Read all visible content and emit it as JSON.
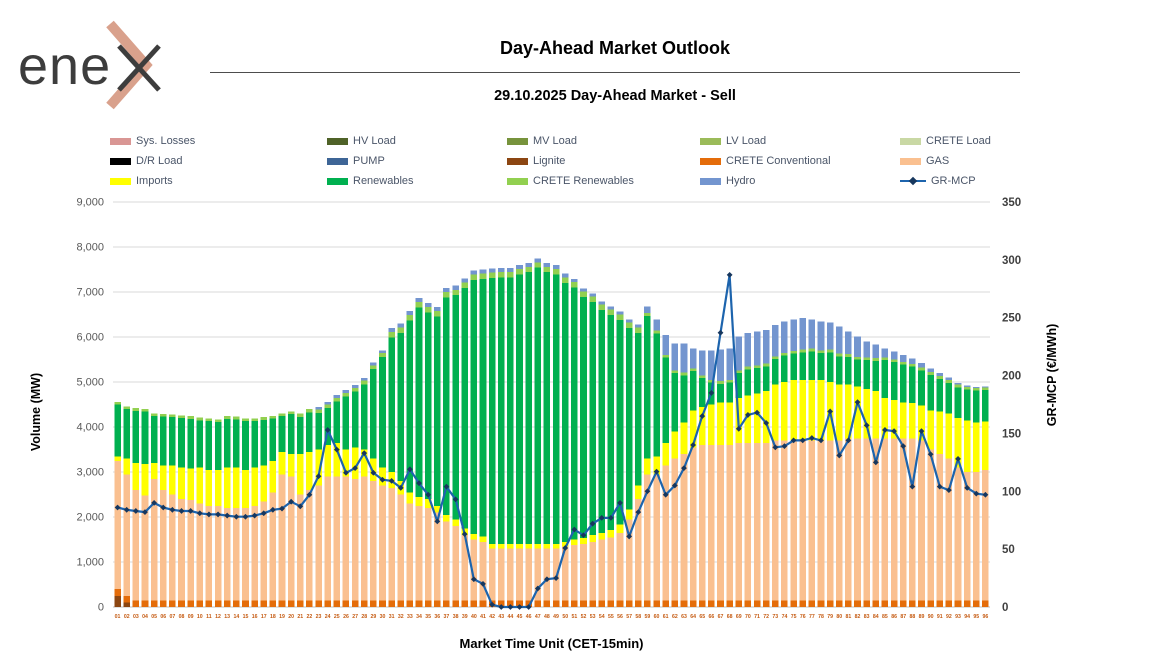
{
  "header": {
    "logo_text": "ene",
    "title": "Day-Ahead Market Outlook",
    "subtitle": "29.10.2025  Day-Ahead Market - Sell"
  },
  "chart_data": {
    "type": "bar",
    "subtype": "stacked-bars-with-line",
    "stack_order": "bottom-to-top",
    "x_label": "Market Time Unit (CET-15min)",
    "y_left_label": "Volume (MW)",
    "y_right_label": "GR-MCP (€/MWh)",
    "y_left_range": [
      0,
      9000
    ],
    "y_left_tick_step": 1000,
    "y_left_ticks": [
      "0",
      "1,000",
      "2,000",
      "3,000",
      "4,000",
      "5,000",
      "6,000",
      "7,000",
      "8,000",
      "9,000"
    ],
    "y_right_range": [
      0,
      350
    ],
    "y_right_tick_step": 50,
    "y_right_ticks": [
      "0",
      "50",
      "100",
      "150",
      "200",
      "250",
      "300",
      "350"
    ],
    "grid": "horizontal",
    "legend_position": "top",
    "colors": {
      "grid": "#d9d9d9",
      "x_tick_labels": "#c55a11",
      "y_left_tick_labels": "#595959",
      "y_right_tick_labels": "#3f3f3f",
      "legend_text": "#4a5568",
      "logo_accent": "#d9a18c",
      "logo_dark": "#3d3d3d"
    },
    "legend": [
      {
        "label": "Sys. Losses",
        "color": "#d99694",
        "type": "box"
      },
      {
        "label": "HV Load",
        "color": "#4f6228",
        "type": "box"
      },
      {
        "label": "MV Load",
        "color": "#77933c",
        "type": "box"
      },
      {
        "label": "LV Load",
        "color": "#9bbb59",
        "type": "box"
      },
      {
        "label": "CRETE Load",
        "color": "#c9d8a4",
        "type": "box"
      },
      {
        "label": "D/R Load",
        "color": "#000000",
        "type": "box"
      },
      {
        "label": "PUMP",
        "color": "#3e6596",
        "type": "box"
      },
      {
        "label": "Lignite",
        "color": "#8c4612",
        "type": "box"
      },
      {
        "label": "CRETE Conventional",
        "color": "#e46c0a",
        "type": "box"
      },
      {
        "label": "GAS",
        "color": "#fac090",
        "type": "box"
      },
      {
        "label": "Imports",
        "color": "#ffff00",
        "type": "box"
      },
      {
        "label": "Renewables",
        "color": "#00b050",
        "type": "box"
      },
      {
        "label": "CRETE Renewables",
        "color": "#92d050",
        "type": "box"
      },
      {
        "label": "Hydro",
        "color": "#7395cf",
        "type": "box"
      },
      {
        "label": "GR-MCP",
        "color": "#1d64ad",
        "marker_color": "#17375e",
        "type": "line"
      }
    ],
    "categories": [
      "01",
      "02",
      "03",
      "04",
      "05",
      "06",
      "07",
      "08",
      "09",
      "10",
      "11",
      "12",
      "13",
      "14",
      "15",
      "16",
      "17",
      "18",
      "19",
      "20",
      "21",
      "22",
      "23",
      "24",
      "25",
      "26",
      "27",
      "28",
      "29",
      "30",
      "31",
      "32",
      "33",
      "34",
      "35",
      "36",
      "37",
      "38",
      "39",
      "40",
      "41",
      "42",
      "43",
      "44",
      "45",
      "46",
      "47",
      "48",
      "49",
      "50",
      "51",
      "52",
      "53",
      "54",
      "55",
      "56",
      "57",
      "58",
      "59",
      "60",
      "61",
      "62",
      "63",
      "64",
      "65",
      "66",
      "67",
      "68",
      "69",
      "70",
      "71",
      "72",
      "73",
      "74",
      "75",
      "76",
      "77",
      "78",
      "79",
      "80",
      "81",
      "82",
      "83",
      "84",
      "85",
      "86",
      "87",
      "88",
      "89",
      "90",
      "91",
      "92",
      "93",
      "94",
      "95",
      "96"
    ],
    "series": [
      {
        "name": "Lignite",
        "color": "#8c4612",
        "axis": "left",
        "values": [
          250,
          100,
          0,
          0,
          0,
          0,
          0,
          0,
          0,
          0,
          0,
          0,
          0,
          0,
          0,
          0,
          0,
          0,
          0,
          0,
          0,
          0,
          0,
          0,
          0,
          0,
          0,
          0,
          0,
          0,
          0,
          0,
          0,
          0,
          0,
          0,
          0,
          0,
          0,
          0,
          0,
          0,
          0,
          0,
          0,
          0,
          0,
          0,
          0,
          0,
          0,
          0,
          0,
          0,
          0,
          0,
          0,
          0,
          0,
          0,
          0,
          0,
          0,
          0,
          0,
          0,
          0,
          0,
          0,
          0,
          0,
          0,
          0,
          0,
          0,
          0,
          0,
          0,
          0,
          0,
          0,
          0,
          0,
          0,
          0,
          0,
          0,
          0,
          0,
          0,
          0,
          0,
          0,
          0,
          0,
          0
        ]
      },
      {
        "name": "CRETE Conventional",
        "color": "#e46c0a",
        "axis": "left",
        "values": [
          150,
          150,
          150,
          150,
          150,
          150,
          150,
          150,
          150,
          150,
          150,
          150,
          150,
          150,
          150,
          150,
          150,
          150,
          150,
          150,
          150,
          150,
          150,
          150,
          150,
          150,
          150,
          150,
          150,
          150,
          150,
          150,
          150,
          150,
          150,
          150,
          150,
          150,
          150,
          150,
          150,
          150,
          150,
          150,
          150,
          150,
          150,
          150,
          150,
          150,
          150,
          150,
          150,
          150,
          150,
          150,
          150,
          150,
          150,
          150,
          150,
          150,
          150,
          150,
          150,
          150,
          150,
          150,
          150,
          150,
          150,
          150,
          150,
          150,
          150,
          150,
          150,
          150,
          150,
          150,
          150,
          150,
          150,
          150,
          150,
          150,
          150,
          150,
          150,
          150,
          150,
          150,
          150,
          150,
          150,
          150
        ]
      },
      {
        "name": "GAS",
        "color": "#fac090",
        "axis": "left",
        "values": [
          2850,
          2700,
          2450,
          2330,
          2700,
          2450,
          2350,
          2250,
          2230,
          2150,
          2100,
          2100,
          2050,
          2050,
          2050,
          2100,
          2200,
          2400,
          2800,
          2750,
          2350,
          2450,
          2550,
          2750,
          2750,
          2750,
          2700,
          2750,
          2650,
          2550,
          2500,
          2350,
          2150,
          2100,
          2050,
          1950,
          1750,
          1650,
          1450,
          1350,
          1300,
          1150,
          1150,
          1150,
          1150,
          1150,
          1150,
          1150,
          1150,
          1200,
          1230,
          1250,
          1300,
          1350,
          1400,
          1500,
          1800,
          2250,
          2800,
          2800,
          3000,
          3150,
          3250,
          3400,
          3450,
          3450,
          3450,
          3450,
          3500,
          3500,
          3500,
          3500,
          3550,
          3550,
          3550,
          3550,
          3550,
          3550,
          3550,
          3550,
          3600,
          3600,
          3600,
          3600,
          3600,
          3600,
          3600,
          3600,
          3550,
          3350,
          3250,
          3150,
          2950,
          2850,
          2850,
          2900
        ]
      },
      {
        "name": "Imports",
        "color": "#ffff00",
        "axis": "left",
        "values": [
          100,
          350,
          600,
          700,
          350,
          550,
          650,
          700,
          700,
          800,
          800,
          800,
          900,
          900,
          850,
          850,
          800,
          700,
          500,
          500,
          900,
          850,
          800,
          700,
          750,
          600,
          700,
          600,
          500,
          400,
          350,
          300,
          250,
          200,
          200,
          150,
          150,
          150,
          150,
          120,
          120,
          100,
          100,
          100,
          100,
          100,
          100,
          100,
          100,
          100,
          120,
          130,
          150,
          150,
          160,
          180,
          220,
          300,
          350,
          400,
          500,
          600,
          700,
          820,
          850,
          900,
          950,
          950,
          1000,
          1050,
          1100,
          1150,
          1250,
          1300,
          1350,
          1350,
          1350,
          1350,
          1300,
          1250,
          1200,
          1150,
          1100,
          1050,
          900,
          850,
          800,
          780,
          780,
          870,
          950,
          1000,
          1100,
          1150,
          1100,
          1070
        ]
      },
      {
        "name": "Renewables",
        "color": "#00b050",
        "axis": "left",
        "values": [
          1150,
          1100,
          1160,
          1160,
          1040,
          1080,
          1070,
          1100,
          1100,
          1050,
          1080,
          1060,
          1080,
          1070,
          1080,
          1030,
          1010,
          940,
          790,
          890,
          820,
          870,
          810,
          820,
          920,
          1180,
          1240,
          1450,
          1990,
          2460,
          2990,
          3290,
          3820,
          4210,
          4150,
          4210,
          4830,
          4980,
          5340,
          5650,
          5720,
          5910,
          5920,
          5920,
          5990,
          6040,
          6140,
          6040,
          5990,
          5750,
          5600,
          5360,
          5180,
          4950,
          4780,
          4550,
          4030,
          3390,
          3170,
          2730,
          1890,
          1300,
          1050,
          870,
          640,
          490,
          410,
          440,
          550,
          580,
          560,
          550,
          560,
          590,
          580,
          610,
          630,
          590,
          660,
          620,
          610,
          600,
          640,
          670,
          840,
          840,
          840,
          810,
          780,
          790,
          720,
          680,
          680,
          680,
          710,
          700
        ]
      },
      {
        "name": "CRETE Renewables",
        "color": "#92d050",
        "axis": "left",
        "values": [
          60,
          60,
          60,
          60,
          60,
          60,
          60,
          60,
          60,
          60,
          60,
          60,
          60,
          60,
          60,
          60,
          60,
          60,
          60,
          60,
          80,
          80,
          80,
          80,
          80,
          80,
          80,
          80,
          80,
          80,
          120,
          120,
          120,
          120,
          120,
          120,
          120,
          120,
          120,
          120,
          120,
          120,
          120,
          120,
          120,
          120,
          120,
          120,
          120,
          120,
          120,
          120,
          120,
          120,
          120,
          120,
          120,
          120,
          60,
          60,
          60,
          60,
          60,
          60,
          60,
          60,
          60,
          60,
          60,
          60,
          60,
          60,
          60,
          60,
          60,
          60,
          60,
          60,
          60,
          60,
          60,
          60,
          60,
          60,
          60,
          60,
          60,
          60,
          60,
          60,
          60,
          60,
          60,
          60,
          60,
          60
        ]
      },
      {
        "name": "Hydro",
        "color": "#7395cf",
        "axis": "left",
        "values": [
          0,
          0,
          0,
          0,
          0,
          0,
          0,
          0,
          0,
          0,
          0,
          0,
          0,
          0,
          0,
          0,
          0,
          0,
          0,
          0,
          0,
          0,
          60,
          60,
          60,
          60,
          60,
          60,
          60,
          60,
          90,
          90,
          90,
          90,
          90,
          90,
          90,
          90,
          90,
          90,
          90,
          90,
          90,
          90,
          90,
          90,
          90,
          90,
          90,
          90,
          70,
          70,
          70,
          70,
          70,
          70,
          70,
          70,
          150,
          250,
          450,
          600,
          650,
          450,
          550,
          650,
          700,
          700,
          750,
          750,
          750,
          750,
          700,
          700,
          700,
          700,
          650,
          650,
          600,
          600,
          500,
          450,
          350,
          300,
          200,
          180,
          150,
          120,
          100,
          80,
          70,
          60,
          40,
          30,
          20,
          20
        ]
      }
    ],
    "line_series": {
      "name": "GR-MCP",
      "color": "#1d64ad",
      "marker_color": "#17375e",
      "axis": "right",
      "values": [
        86,
        84,
        83,
        82,
        90,
        86,
        84,
        83,
        83,
        81,
        80,
        80,
        79,
        78,
        78,
        79,
        81,
        84,
        85,
        91,
        87,
        97,
        113,
        153,
        136,
        116,
        120,
        133,
        116,
        110,
        109,
        103,
        119,
        107,
        97,
        74,
        104,
        93,
        63,
        24,
        20,
        2,
        0,
        0,
        0,
        0,
        16,
        24,
        25,
        51,
        67,
        62,
        72,
        77,
        77,
        90,
        61,
        82,
        100,
        117,
        97,
        105,
        120,
        140,
        165,
        185,
        237,
        287,
        154,
        166,
        168,
        159,
        138,
        139,
        144,
        144,
        146,
        144,
        169,
        131,
        144,
        177,
        157,
        125,
        153,
        152,
        139,
        104,
        152,
        132,
        104,
        101,
        128,
        103,
        98,
        97
      ]
    }
  }
}
